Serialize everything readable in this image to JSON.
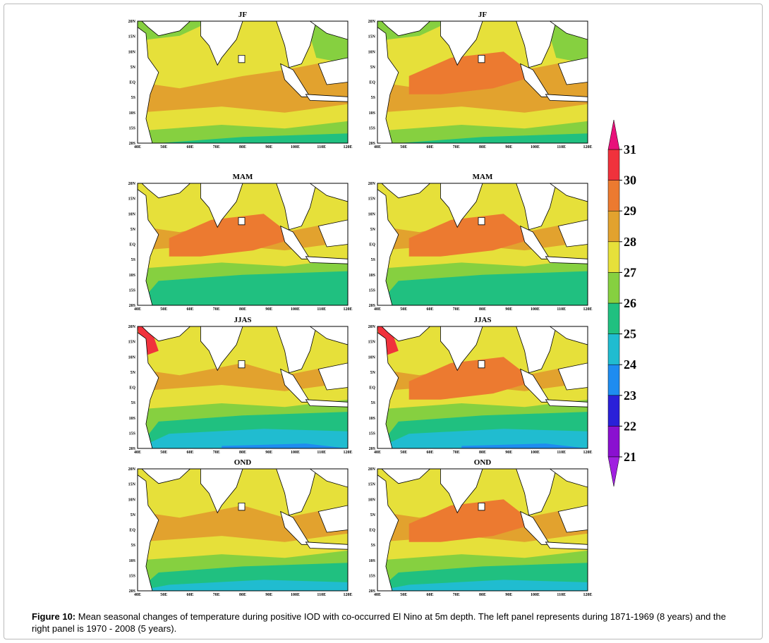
{
  "panels": [
    {
      "title": "JF"
    },
    {
      "title": "JF"
    },
    {
      "title": "MAM"
    },
    {
      "title": "MAM"
    },
    {
      "title": "JJAS"
    },
    {
      "title": "JJAS"
    },
    {
      "title": "OND"
    },
    {
      "title": "OND"
    }
  ],
  "axes": {
    "lat_labels": [
      "20N",
      "15N",
      "10N",
      "5N",
      "EQ",
      "5S",
      "10S",
      "15S",
      "20S"
    ],
    "lon_labels": [
      "40E",
      "50E",
      "60E",
      "70E",
      "80E",
      "90E",
      "100E",
      "110E",
      "120E"
    ]
  },
  "colorbar": {
    "ticks": [
      21,
      22,
      23,
      24,
      25,
      26,
      27,
      28,
      29,
      30,
      31
    ],
    "colors": [
      "#8a10d0",
      "#2a20d8",
      "#1e8cf0",
      "#20bcd0",
      "#20c080",
      "#86d040",
      "#e6e03a",
      "#e2a22e",
      "#ec7a30",
      "#f0323c"
    ],
    "under_color": "#a020e0",
    "over_color": "#e8107a"
  },
  "caption": {
    "label": "Figure 10:",
    "text": "Mean seasonal changes of temperature during positive IOD with co-occurred El Nino at 5m depth. The left panel represents during 1871-1969 (8 years) and the right panel is 1970 - 2008 (5 years)."
  }
}
